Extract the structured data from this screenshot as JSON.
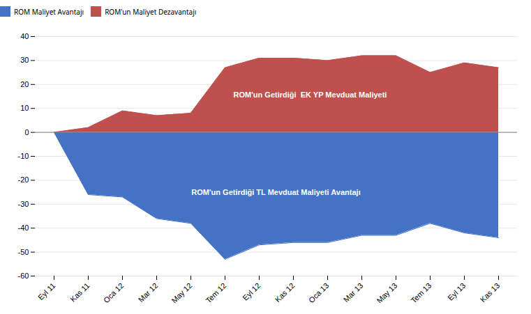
{
  "chart_data": {
    "type": "area",
    "categories": [
      "Eyl 11",
      "Kas 11",
      "Oca 12",
      "Mar 12",
      "May 12",
      "Tem 12",
      "Eyl 12",
      "Kas 12",
      "Oca 13",
      "Mar 13",
      "May 13",
      "Tem 13",
      "Eyl 13",
      "Kas 13"
    ],
    "series": [
      {
        "name": "ROM Maliyet Avantajı",
        "color": "#4472C4",
        "values": [
          0,
          -26,
          -27,
          -36,
          -38,
          -53,
          -47,
          -46,
          -46,
          -43,
          -43,
          -38,
          -42,
          -44
        ]
      },
      {
        "name": "ROM'un Maliyet Dezavantajı",
        "color": "#C0504D",
        "values": [
          0,
          2,
          9,
          7,
          8,
          27,
          31,
          31,
          30,
          32,
          32,
          25,
          29,
          27
        ]
      }
    ],
    "annotations": [
      "ROM'un Getirdiği TL Mevduat Maliyeti Avantajı",
      "ROM'un Getirdiği  EK YP Mevduat Maliyeti"
    ],
    "ylim": [
      -60,
      40
    ],
    "yticks": [
      -60,
      -50,
      -40,
      -30,
      -20,
      -10,
      0,
      10,
      20,
      30,
      40
    ],
    "grid": true,
    "legend": "upper left"
  }
}
